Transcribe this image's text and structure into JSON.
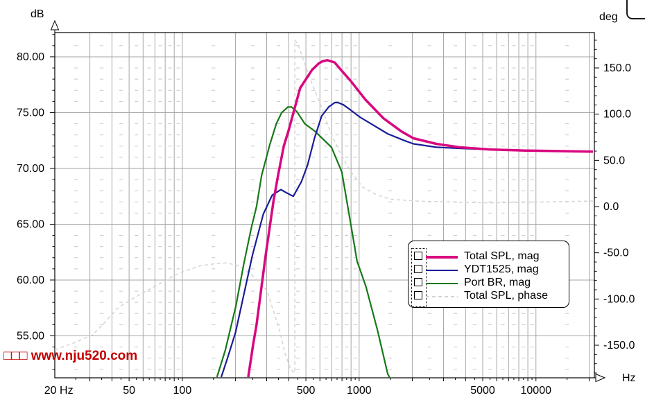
{
  "watermark": "□□□ www.nju520.com",
  "axes": {
    "left_unit": "dB",
    "right_unit": "deg",
    "bottom_unit": "Hz"
  },
  "chart_data": {
    "type": "line",
    "title": "",
    "x_axis": {
      "scale": "log",
      "unit": "Hz",
      "min": 19,
      "max": 21400,
      "gridlines": [
        30,
        40,
        50,
        60,
        70,
        80,
        90,
        100,
        200,
        300,
        400,
        500,
        600,
        700,
        800,
        900,
        1000,
        2000,
        3000,
        4000,
        5000,
        6000,
        7000,
        8000,
        9000,
        10000,
        20000
      ],
      "minor_columns": [
        25,
        35,
        45,
        55,
        65,
        75,
        85,
        95,
        150,
        250,
        350,
        450,
        550,
        650,
        750,
        850,
        950,
        1500,
        2500,
        3500,
        4500,
        5500,
        6500,
        7500,
        8500,
        9500,
        15000
      ],
      "tick_labels": [
        {
          "f": 20,
          "label": "20 Hz"
        },
        {
          "f": 50,
          "label": "50"
        },
        {
          "f": 100,
          "label": "100"
        },
        {
          "f": 500,
          "label": "500"
        },
        {
          "f": 1000,
          "label": "1000"
        },
        {
          "f": 5000,
          "label": "5000"
        },
        {
          "f": 10000,
          "label": "10000"
        }
      ]
    },
    "y_left": {
      "unit": "dB",
      "min": 51.24,
      "max": 82.17,
      "gridlines": [
        55,
        60,
        65,
        70,
        75,
        80
      ],
      "tick_labels": [
        {
          "v": 80,
          "label": "80.00"
        },
        {
          "v": 75,
          "label": "75.00"
        },
        {
          "v": 70,
          "label": "70.00"
        },
        {
          "v": 65,
          "label": "65.00"
        },
        {
          "v": 60,
          "label": "60.00"
        },
        {
          "v": 55,
          "label": "55.00"
        }
      ]
    },
    "y_right": {
      "unit": "deg",
      "min": -185.25,
      "max": 188.25,
      "tick_labels": [
        {
          "v": 150,
          "label": "150.0"
        },
        {
          "v": 100,
          "label": "100.0"
        },
        {
          "v": 50,
          "label": "50.0"
        },
        {
          "v": 0,
          "label": "0.0"
        },
        {
          "v": -50,
          "label": "-50.0"
        },
        {
          "v": -100,
          "label": "-100.0"
        },
        {
          "v": -150,
          "label": "-150.0"
        }
      ]
    },
    "series": [
      {
        "name": "Total SPL, mag",
        "axis": "left",
        "color": "#d9077f",
        "width": 3.5,
        "dash": null,
        "points": [
          [
            236,
            51.3
          ],
          [
            252,
            54.3
          ],
          [
            263,
            56.0
          ],
          [
            296,
            62.2
          ],
          [
            328,
            67.1
          ],
          [
            350,
            69.6
          ],
          [
            375,
            72.0
          ],
          [
            399,
            73.4
          ],
          [
            464,
            77.2
          ],
          [
            540,
            78.8
          ],
          [
            590,
            79.4
          ],
          [
            620,
            79.6
          ],
          [
            660,
            79.7
          ],
          [
            726,
            79.5
          ],
          [
            772,
            79.0
          ],
          [
            900,
            77.8
          ],
          [
            1080,
            76.2
          ],
          [
            1370,
            74.5
          ],
          [
            1740,
            73.3
          ],
          [
            2030,
            72.7
          ],
          [
            2730,
            72.2
          ],
          [
            3670,
            71.9
          ],
          [
            5470,
            71.7
          ],
          [
            8800,
            71.6
          ],
          [
            21000,
            71.5
          ]
        ]
      },
      {
        "name": "YDT1525, mag",
        "axis": "left",
        "color": "#1a1c96",
        "width": 2.2,
        "dash": null,
        "points": [
          [
            166,
            51.3
          ],
          [
            180,
            53.0
          ],
          [
            200,
            55.3
          ],
          [
            249,
            62.2
          ],
          [
            287,
            65.9
          ],
          [
            322,
            67.6
          ],
          [
            361,
            68.1
          ],
          [
            390,
            67.8
          ],
          [
            424,
            67.5
          ],
          [
            471,
            68.8
          ],
          [
            511,
            70.3
          ],
          [
            559,
            72.7
          ],
          [
            614,
            74.7
          ],
          [
            672,
            75.5
          ],
          [
            728,
            75.9
          ],
          [
            760,
            75.9
          ],
          [
            815,
            75.7
          ],
          [
            900,
            75.2
          ],
          [
            1010,
            74.6
          ],
          [
            1140,
            74.1
          ],
          [
            1450,
            73.1
          ],
          [
            1800,
            72.5
          ],
          [
            2030,
            72.2
          ],
          [
            2730,
            71.9
          ],
          [
            3670,
            71.8
          ],
          [
            5470,
            71.7
          ],
          [
            21000,
            71.5
          ]
        ]
      },
      {
        "name": "Port BR, mag",
        "axis": "left",
        "color": "#177817",
        "width": 2.2,
        "dash": null,
        "points": [
          [
            157,
            51.3
          ],
          [
            175,
            53.7
          ],
          [
            201,
            57.7
          ],
          [
            223,
            61.5
          ],
          [
            245,
            64.6
          ],
          [
            263,
            66.6
          ],
          [
            281,
            69.4
          ],
          [
            312,
            72.1
          ],
          [
            340,
            74.0
          ],
          [
            365,
            75.0
          ],
          [
            395,
            75.5
          ],
          [
            415,
            75.5
          ],
          [
            444,
            75.1
          ],
          [
            493,
            74.0
          ],
          [
            565,
            73.3
          ],
          [
            697,
            71.9
          ],
          [
            798,
            69.7
          ],
          [
            906,
            64.6
          ],
          [
            973,
            61.7
          ],
          [
            1093,
            59.4
          ],
          [
            1270,
            55.5
          ],
          [
            1450,
            51.6
          ],
          [
            1495,
            51.2
          ]
        ]
      },
      {
        "name": "Total SPL, phase",
        "axis": "right",
        "color": "#d4d4d4",
        "width": 1.5,
        "dash": "5 4",
        "points": [
          [
            19,
            -155
          ],
          [
            24,
            -148
          ],
          [
            31,
            -139
          ],
          [
            37,
            -124
          ],
          [
            43,
            -110
          ],
          [
            52,
            -100
          ],
          [
            63,
            -91
          ],
          [
            77,
            -82
          ],
          [
            89,
            -75
          ],
          [
            106,
            -69
          ],
          [
            127,
            -64
          ],
          [
            152,
            -62
          ],
          [
            178,
            -61
          ],
          [
            209,
            -64
          ],
          [
            251,
            -75
          ],
          [
            301,
            -91
          ],
          [
            329,
            -114
          ],
          [
            357,
            -136
          ],
          [
            381,
            -159
          ],
          [
            410,
            -176
          ],
          [
            433,
            -180
          ],
          [
            433,
            180
          ],
          [
            450,
            176
          ],
          [
            494,
            154
          ],
          [
            549,
            130
          ],
          [
            614,
            107
          ],
          [
            687,
            81
          ],
          [
            772,
            60
          ],
          [
            882,
            40
          ],
          [
            1047,
            21
          ],
          [
            1250,
            13
          ],
          [
            1500,
            8
          ],
          [
            2100,
            6
          ],
          [
            3290,
            5
          ],
          [
            5470,
            4
          ],
          [
            11600,
            5
          ],
          [
            21000,
            6
          ]
        ]
      }
    ],
    "legend_position": "inside-right-middle",
    "grid": "on"
  }
}
